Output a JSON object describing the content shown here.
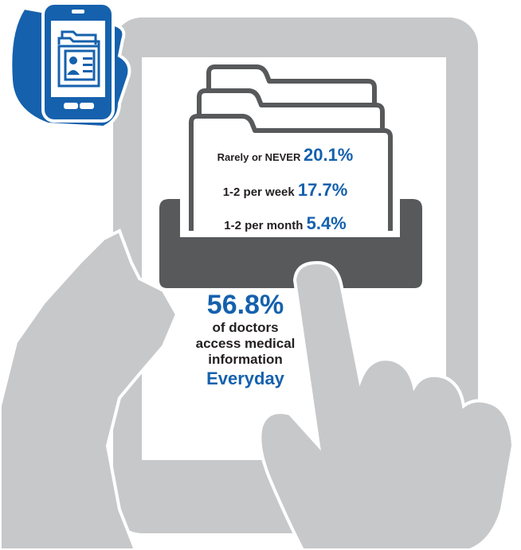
{
  "stats": {
    "rows": [
      {
        "label": "Rarely or NEVER",
        "value": "20.1%"
      },
      {
        "label": "1-2 per week",
        "value": "17.7%"
      },
      {
        "label": "1-2 per month",
        "value": "5.4%"
      }
    ],
    "headline": {
      "percent": "56.8%",
      "line1": "of doctors",
      "line2": "access medical",
      "line3": "information",
      "emphasis": "Everyday"
    }
  },
  "colors": {
    "accent_blue": "#1561ad",
    "device_gray": "#c7c8ca",
    "tray_dark": "#58595b",
    "text_dark": "#231f20"
  },
  "icons": [
    "phone-with-files-icon",
    "tablet-icon",
    "folder-stack-icon",
    "file-tray-icon",
    "pointing-hand-icon",
    "holding-hand-icon"
  ]
}
